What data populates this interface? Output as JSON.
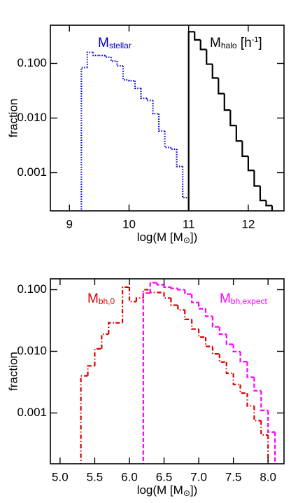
{
  "chart_data": [
    {
      "type": "histogram",
      "log_y": true,
      "x_label_parts": [
        {
          "text": "log(M [M"
        },
        {
          "text": "⊙",
          "sub": true
        },
        {
          "text": "])"
        }
      ],
      "y_label": "fraction",
      "xlim": [
        8.68,
        12.6
      ],
      "ylim": [
        0.0002,
        0.5
      ],
      "xticks": [
        9,
        10,
        11,
        12
      ],
      "yticks": [
        {
          "value": 0.001,
          "label": "0.001"
        },
        {
          "value": 0.01,
          "label": "0.010"
        },
        {
          "value": 0.1,
          "label": "0.100"
        }
      ],
      "series": [
        {
          "name_parts": [
            {
              "text": "M"
            },
            {
              "text": "stellar",
              "sub": true
            }
          ],
          "color": "#0000cc",
          "linestyle": "dotted",
          "bins": [
            9.2,
            9.3,
            9.4,
            9.5,
            9.6,
            9.7,
            9.8,
            9.9,
            10.0,
            10.1,
            10.2,
            10.3,
            10.4,
            10.5,
            10.6,
            10.7,
            10.8,
            10.9,
            11.0
          ],
          "values": [
            0.084,
            0.16,
            0.14,
            0.14,
            0.13,
            0.11,
            0.09,
            0.05,
            0.048,
            0.035,
            0.023,
            0.021,
            0.012,
            0.0058,
            0.0029,
            0.0027,
            0.0013,
            0.00035
          ]
        },
        {
          "name_parts": [
            {
              "text": "M"
            },
            {
              "text": "halo",
              "sub": true
            },
            {
              "text": " [h"
            },
            {
              "text": "-1",
              "sup": true
            },
            {
              "text": "]"
            }
          ],
          "color": "#000000",
          "linestyle": "solid",
          "bins": [
            11.0,
            11.1,
            11.2,
            11.3,
            11.4,
            11.5,
            11.6,
            11.7,
            11.8,
            11.9,
            12.0,
            12.1,
            12.2,
            12.3,
            12.4
          ],
          "values": [
            0.38,
            0.27,
            0.18,
            0.097,
            0.054,
            0.028,
            0.014,
            0.0073,
            0.0038,
            0.002,
            0.0011,
            0.00057,
            0.00031,
            0.00025
          ]
        }
      ]
    },
    {
      "type": "histogram",
      "log_y": true,
      "x_label_parts": [
        {
          "text": "log(M [M"
        },
        {
          "text": "⊙",
          "sub": true
        },
        {
          "text": "])"
        }
      ],
      "y_label": "fraction",
      "xlim": [
        4.86,
        8.23
      ],
      "ylim": [
        0.00015,
        0.15
      ],
      "xticks": [
        {
          "value": 5,
          "label": "5.0"
        },
        5.5,
        {
          "value": 6,
          "label": "6.0"
        },
        6.5,
        {
          "value": 7,
          "label": "7.0"
        },
        7.5,
        {
          "value": 8,
          "label": "8.0"
        }
      ],
      "yticks": [
        {
          "value": 0.001,
          "label": "0.001"
        },
        {
          "value": 0.01,
          "label": "0.010"
        },
        {
          "value": 0.1,
          "label": "0.100"
        }
      ],
      "series": [
        {
          "name_parts": [
            {
              "text": "M"
            },
            {
              "text": "bh,0",
              "sub": true
            }
          ],
          "color": "#dd0000",
          "linestyle": "dashdot",
          "bins": [
            5.3,
            5.4,
            5.5,
            5.6,
            5.7,
            5.8,
            5.9,
            6.0,
            6.1,
            6.2,
            6.3,
            6.4,
            6.5,
            6.6,
            6.7,
            6.8,
            6.9,
            7.0,
            7.1,
            7.2,
            7.3,
            7.4,
            7.5,
            7.6,
            7.7,
            7.8,
            7.9,
            8.0
          ],
          "values": [
            0.004,
            0.0058,
            0.011,
            0.019,
            0.029,
            0.029,
            0.11,
            0.064,
            0.073,
            0.1,
            0.09,
            0.09,
            0.073,
            0.056,
            0.047,
            0.033,
            0.023,
            0.017,
            0.012,
            0.0091,
            0.0067,
            0.0044,
            0.0029,
            0.0021,
            0.0013,
            0.00075,
            0.00044
          ]
        },
        {
          "name_parts": [
            {
              "text": "M"
            },
            {
              "text": "bh,expect",
              "sub": true
            }
          ],
          "color": "#ff00ff",
          "linestyle": "dashed",
          "bins": [
            6.2,
            6.3,
            6.4,
            6.5,
            6.6,
            6.7,
            6.8,
            6.9,
            7.0,
            7.1,
            7.2,
            7.3,
            7.4,
            7.5,
            7.6,
            7.7,
            7.8,
            7.9,
            8.0,
            8.1
          ],
          "values": [
            0.088,
            0.13,
            0.12,
            0.11,
            0.105,
            0.1,
            0.085,
            0.062,
            0.049,
            0.037,
            0.025,
            0.019,
            0.013,
            0.0099,
            0.0068,
            0.0038,
            0.0023,
            0.0011,
            0.00049
          ]
        }
      ]
    }
  ]
}
